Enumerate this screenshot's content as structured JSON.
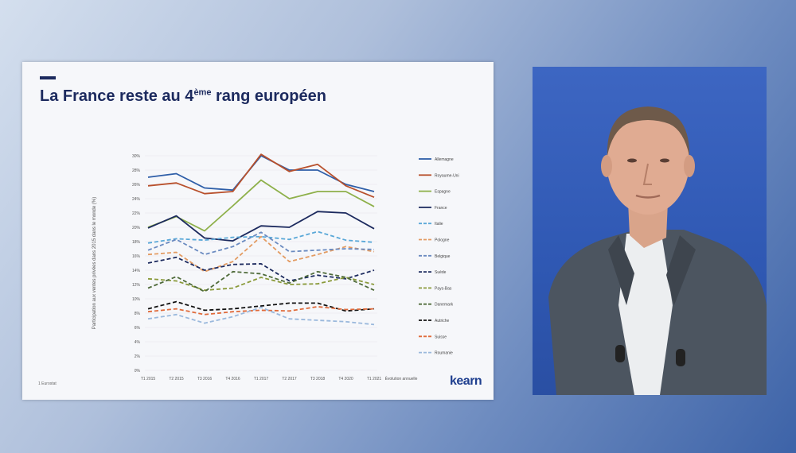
{
  "slide": {
    "title_prefix": "La France reste au 4",
    "title_sup": "ème",
    "title_suffix": " rang européen",
    "footnote": "1  Eurostat",
    "logo": "kearn"
  },
  "chart_data": {
    "type": "line",
    "ylabel": "Participation aux ventes privées dans 2015 dans le monde (%)",
    "categories": [
      "T1 2015",
      "T2 2015",
      "T3 2016",
      "T4 2016",
      "T1 2017",
      "T2 2017",
      "T3 2018",
      "T4 2020",
      "T1 2021"
    ],
    "extra_tick": "Évolution annuelle",
    "yticks": [
      "0%",
      "2%",
      "4%",
      "6%",
      "8%",
      "10%",
      "12%",
      "14%",
      "16%",
      "18%",
      "20%",
      "22%",
      "24%",
      "26%",
      "28%",
      "30%"
    ],
    "ylim": [
      0,
      30
    ],
    "series": [
      {
        "name": "Allemagne",
        "color": "#2e5ea8",
        "dash": "solid",
        "values": [
          27,
          27.5,
          25.5,
          25.2,
          30,
          28,
          28,
          26,
          25
        ]
      },
      {
        "name": "Royaume-Uni",
        "color": "#b8502c",
        "dash": "solid",
        "values": [
          25.8,
          26.2,
          24.7,
          25,
          30.2,
          27.8,
          28.8,
          25.8,
          24.2
        ]
      },
      {
        "name": "Espagne",
        "color": "#8eb04a",
        "dash": "solid",
        "values": [
          20,
          21.5,
          19.5,
          23,
          26.6,
          24,
          25,
          25,
          22.9
        ]
      },
      {
        "name": "France",
        "color": "#1c2a5e",
        "dash": "solid",
        "values": [
          19.9,
          21.6,
          18.5,
          18.1,
          20.2,
          20,
          22.2,
          22,
          19.8
        ]
      },
      {
        "name": "Italie",
        "color": "#5aa8d8",
        "dash": "dash",
        "values": [
          17.8,
          18.4,
          18.2,
          18.6,
          18.7,
          18.3,
          19.4,
          18.2,
          17.9
        ]
      },
      {
        "name": "Pologne",
        "color": "#e39b62",
        "dash": "dash",
        "values": [
          16.2,
          16.5,
          13.8,
          15.2,
          18.7,
          15.2,
          16.2,
          17.3,
          16.6
        ]
      },
      {
        "name": "Belgique",
        "color": "#6a8ac0",
        "dash": "dash",
        "values": [
          16.8,
          18.3,
          16.2,
          17.3,
          19.3,
          16.6,
          16.8,
          17,
          16.9
        ]
      },
      {
        "name": "Suède",
        "color": "#1c2a5e",
        "dash": "dash",
        "values": [
          15,
          15.8,
          14,
          14.8,
          14.9,
          12.5,
          13.3,
          12.8,
          14
        ]
      },
      {
        "name": "Pays-Bas",
        "color": "#8a9a3a",
        "dash": "dash",
        "values": [
          12.8,
          12.5,
          11.2,
          11.5,
          13,
          12,
          12.1,
          13,
          12
        ]
      },
      {
        "name": "Danemark",
        "color": "#4f6b3a",
        "dash": "dash",
        "values": [
          11.5,
          13.1,
          11,
          13.8,
          13.5,
          12.2,
          13.8,
          13,
          11.2
        ]
      },
      {
        "name": "Autriche",
        "color": "#111111",
        "dash": "dash",
        "values": [
          8.6,
          9.6,
          8.4,
          8.6,
          9,
          9.4,
          9.4,
          8.3,
          8.6
        ]
      },
      {
        "name": "Suisse",
        "color": "#e06a3a",
        "dash": "dash",
        "values": [
          8.2,
          8.6,
          7.8,
          8.2,
          8.4,
          8.3,
          8.9,
          8.5,
          8.6
        ]
      },
      {
        "name": "Roumanie",
        "color": "#9ab8dc",
        "dash": "dash",
        "values": [
          7.2,
          7.8,
          6.6,
          7.5,
          8.8,
          7.2,
          7,
          6.8,
          6.4
        ]
      }
    ]
  },
  "video": {
    "description_label": "speaker-video-feed"
  }
}
